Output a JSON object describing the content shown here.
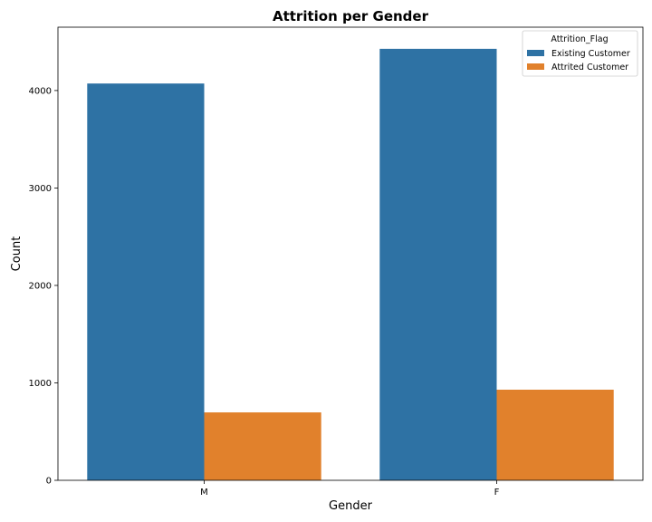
{
  "chart_data": {
    "type": "bar",
    "title": "Attrition per Gender",
    "xlabel": "Gender",
    "ylabel": "Count",
    "categories": [
      "M",
      "F"
    ],
    "series": [
      {
        "name": "Existing Customer",
        "values": [
          4072,
          4428
        ],
        "color": "#2e72a4"
      },
      {
        "name": "Attrited Customer",
        "values": [
          697,
          930
        ],
        "color": "#e1812c"
      }
    ],
    "ylim": [
      0,
      4650
    ],
    "yticks": [
      0,
      1000,
      2000,
      3000,
      4000
    ],
    "grid": false,
    "legend": {
      "title": "Attrition_Flag",
      "position": "top-right"
    }
  }
}
